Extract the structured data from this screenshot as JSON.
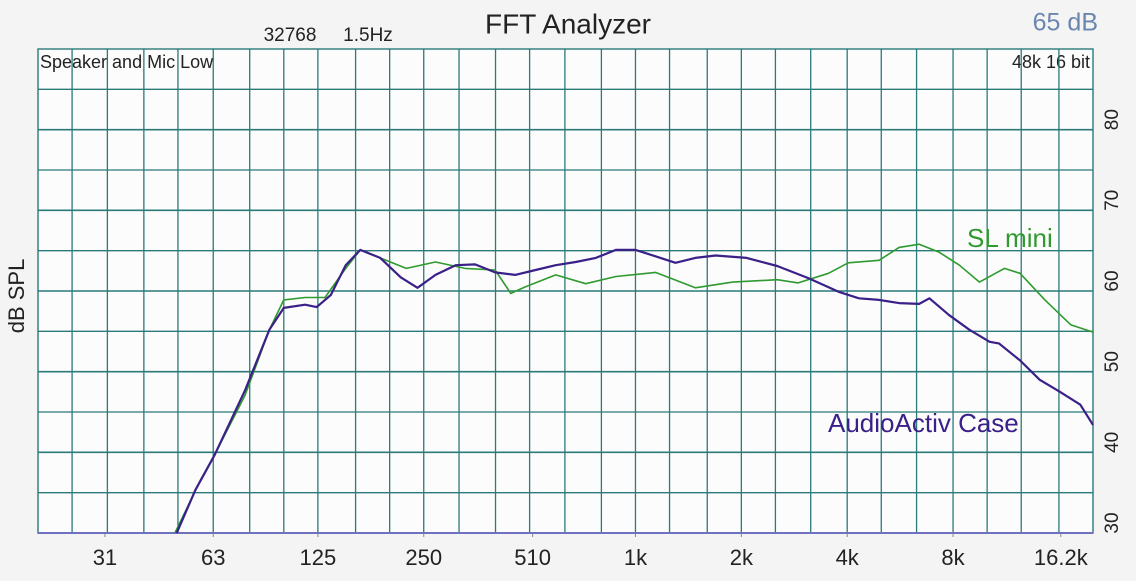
{
  "chart_data": {
    "type": "line",
    "title": "FFT Analyzer",
    "fft_size": "32768",
    "resolution": "1.5Hz",
    "level": "65 dB",
    "subtitle": "Speaker and Mic Low",
    "format": "48k 16 bit",
    "y_label": "dB SPL",
    "x_scale": "log",
    "xlim": [
      20,
      20000
    ],
    "xticks": [
      31,
      63,
      125,
      250,
      510,
      {
        "value": 1000,
        "label": "1k"
      },
      {
        "value": 2000,
        "label": "2k"
      },
      {
        "value": 4000,
        "label": "4k"
      },
      {
        "value": 8000,
        "label": "8k"
      },
      {
        "value": 16200,
        "label": "16.2k"
      }
    ],
    "xgrid": [
      25,
      31.5,
      40,
      50,
      63,
      80,
      100,
      125,
      160,
      200,
      250,
      315,
      400,
      500,
      630,
      800,
      1000,
      1250,
      1600,
      2000,
      2500,
      3150,
      4000,
      5000,
      6300,
      8000,
      10000,
      12500,
      16000
    ],
    "ylim": [
      30,
      90
    ],
    "yticks": [
      30,
      40,
      50,
      60,
      70,
      80
    ],
    "yminor": [
      35,
      45,
      55,
      65,
      75,
      85
    ],
    "grid": true,
    "series": [
      {
        "name": "SL mini",
        "color": "#2f9a2f",
        "x": [
          49,
          58,
          63.6,
          77.6,
          91,
          100,
          115,
          131,
          150,
          165,
          188,
          223,
          270,
          328,
          399,
          442,
          485,
          593,
          722,
          880,
          1140,
          1480,
          1890,
          2530,
          2900,
          3540,
          4030,
          4930,
          5620,
          6410,
          7310,
          8340,
          9510,
          11200,
          12400,
          14600,
          17300,
          20000
        ],
        "values": [
          30,
          36.6,
          39.7,
          47.1,
          55.2,
          58.9,
          59.2,
          59.2,
          62.8,
          65.1,
          64.1,
          62.8,
          63.6,
          62.8,
          62.6,
          59.7,
          60.5,
          62,
          60.9,
          61.8,
          62.3,
          60.4,
          61.1,
          61.4,
          61,
          62.2,
          63.5,
          63.8,
          65.4,
          65.8,
          64.8,
          63.2,
          61.1,
          62.8,
          62.2,
          58.9,
          55.8,
          54.9
        ]
      },
      {
        "name": "AudioActiv Case",
        "color": "#3a2088",
        "x": [
          49.6,
          56,
          63.6,
          77.6,
          91,
          100,
          115,
          124,
          136,
          150,
          165,
          188,
          215,
          240,
          270,
          308,
          350,
          399,
          455,
          520,
          593,
          676,
          771,
          880,
          1000,
          1140,
          1300,
          1480,
          1690,
          2070,
          2530,
          3100,
          3780,
          4320,
          4930,
          5620,
          6410,
          6850,
          7800,
          8900,
          10160,
          10800,
          12400,
          14100,
          16100,
          18400,
          20000
        ],
        "values": [
          30,
          35.3,
          39.7,
          47.7,
          55.2,
          57.9,
          58.3,
          58,
          59.5,
          63.2,
          65.1,
          64.1,
          61.7,
          60.4,
          62,
          63.2,
          63.3,
          62.3,
          62,
          62.6,
          63.2,
          63.6,
          64.1,
          65.1,
          65.1,
          64.3,
          63.5,
          64.1,
          64.4,
          64.1,
          63.1,
          61.6,
          59.9,
          59.1,
          58.9,
          58.5,
          58.4,
          59.1,
          57,
          55.2,
          53.7,
          53.5,
          51.4,
          49,
          47.5,
          45.9,
          43.4
        ]
      }
    ]
  }
}
